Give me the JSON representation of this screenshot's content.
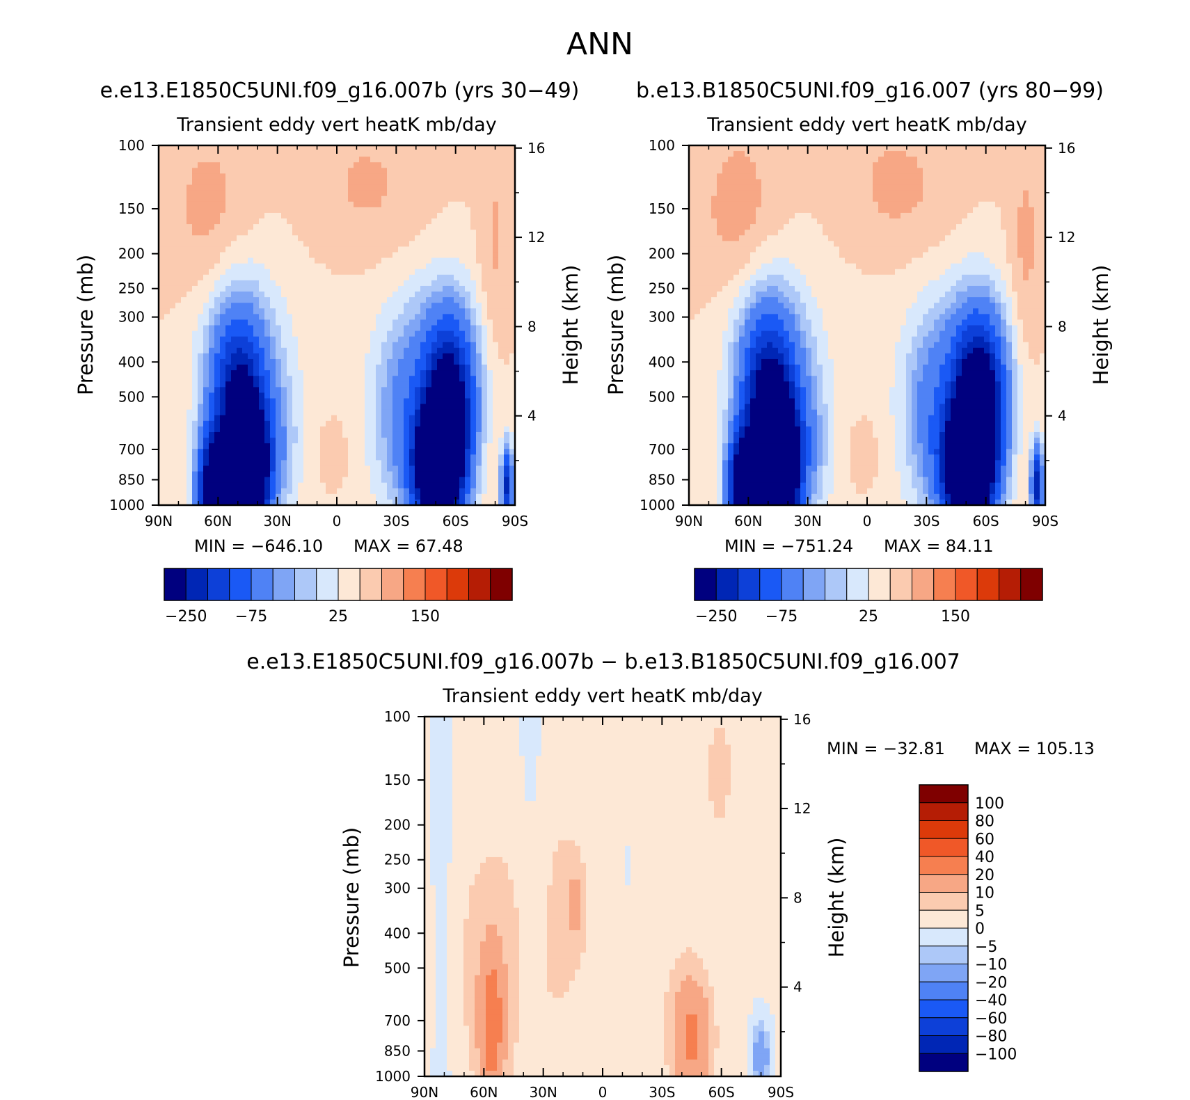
{
  "figure": {
    "season": "ANN",
    "diff_title": "e.e13.E1850C5UNI.f09_g16.007b − b.e13.B1850C5UNI.f09_g16.007"
  },
  "palettes": {
    "main": [
      "#00007f",
      "#0026b5",
      "#0d40d8",
      "#1a59f5",
      "#4f82f5",
      "#7fa5f5",
      "#adc8f8",
      "#d8e8fc",
      "#fde8d6",
      "#fbcbb0",
      "#f7a785",
      "#f67f50",
      "#f05828",
      "#dc3a0a",
      "#b51d05",
      "#7f0000"
    ],
    "diff": [
      "#00007f",
      "#0026b5",
      "#0d40d8",
      "#1a59f5",
      "#4f82f5",
      "#7fa5f5",
      "#adc8f8",
      "#d8e8fc",
      "#fde8d6",
      "#fbcbb0",
      "#f7a785",
      "#f67f50",
      "#f05828",
      "#dc3a0a",
      "#b51d05",
      "#7f0000"
    ]
  },
  "chart_data": [
    {
      "type": "contour",
      "case_title": "e.e13.E1850C5UNI.f09_g16.007b (yrs 30−49)",
      "variable_label": "Transient eddy vert heatK mb/day",
      "ylabel": "Pressure (mb)",
      "ylabel_right": "Height (km)",
      "x_ticks": [
        "90N",
        "60N",
        "30N",
        "0",
        "30S",
        "60S",
        "90S"
      ],
      "x_values": [
        90,
        60,
        30,
        0,
        -30,
        -60,
        -90
      ],
      "y_ticks": [
        100,
        150,
        200,
        250,
        300,
        400,
        500,
        700,
        850,
        1000
      ],
      "y_ticks_right": [
        4,
        8,
        12,
        16
      ],
      "ylim": [
        1000,
        100
      ],
      "xlim": [
        90,
        -90
      ],
      "min_label": "MIN = −646.10",
      "max_label": "MAX = 67.48",
      "min": -646.1,
      "max": 67.48,
      "colorbar_labels": [
        "−250",
        "−75",
        "25",
        "150"
      ],
      "colorbar_label_index": [
        1,
        4,
        8,
        12
      ],
      "strength": 1.0,
      "fields": [
        {
          "lat": 60,
          "p": 930,
          "value": -420
        },
        {
          "lat": 45,
          "p": 800,
          "value": -646
        },
        {
          "lat": 50,
          "p": 560,
          "value": -320
        },
        {
          "lat": -50,
          "p": 790,
          "value": -520
        },
        {
          "lat": -55,
          "p": 560,
          "value": -360
        },
        {
          "lat": -85,
          "p": 880,
          "value": -300
        }
      ]
    },
    {
      "type": "contour",
      "case_title": "b.e13.B1850C5UNI.f09_g16.007 (yrs 80−99)",
      "variable_label": "Transient eddy vert heatK mb/day",
      "ylabel": "Pressure (mb)",
      "ylabel_right": "Height (km)",
      "x_ticks": [
        "90N",
        "60N",
        "30N",
        "0",
        "30S",
        "60S",
        "90S"
      ],
      "x_values": [
        90,
        60,
        30,
        0,
        -30,
        -60,
        -90
      ],
      "y_ticks": [
        100,
        150,
        200,
        250,
        300,
        400,
        500,
        700,
        850,
        1000
      ],
      "y_ticks_right": [
        4,
        8,
        12,
        16
      ],
      "ylim": [
        1000,
        100
      ],
      "xlim": [
        90,
        -90
      ],
      "min_label": "MIN = −751.24",
      "max_label": "MAX = 84.11",
      "min": -751.24,
      "max": 84.11,
      "colorbar_labels": [
        "−250",
        "−75",
        "25",
        "150"
      ],
      "colorbar_label_index": [
        1,
        4,
        8,
        12
      ],
      "strength": 1.1
    },
    {
      "type": "contour",
      "variable_label": "Transient eddy vert heatK mb/day",
      "ylabel": "Pressure (mb)",
      "ylabel_right": "Height (km)",
      "x_ticks": [
        "90N",
        "60N",
        "30N",
        "0",
        "30S",
        "60S",
        "90S"
      ],
      "x_values": [
        90,
        60,
        30,
        0,
        -30,
        -60,
        -90
      ],
      "y_ticks": [
        100,
        150,
        200,
        250,
        300,
        400,
        500,
        700,
        850,
        1000
      ],
      "y_ticks_right": [
        4,
        8,
        12,
        16
      ],
      "ylim": [
        1000,
        100
      ],
      "xlim": [
        90,
        -90
      ],
      "min_label": "MIN = −32.81",
      "max_label": "MAX = 105.13",
      "min": -32.81,
      "max": 105.13,
      "colorbar_levels": [
        "100",
        "80",
        "60",
        "40",
        "20",
        "10",
        "5",
        "0",
        "−5",
        "−10",
        "−20",
        "−40",
        "−60",
        "−80",
        "−100"
      ]
    }
  ]
}
